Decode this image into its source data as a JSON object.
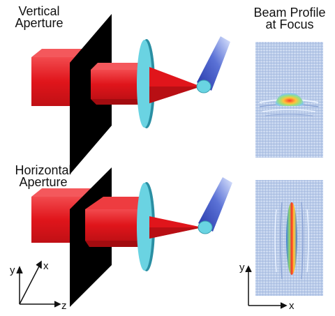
{
  "labels": {
    "top_aperture": [
      "Vertical",
      "Aperture"
    ],
    "bottom_aperture": [
      "Horizontal",
      "Aperture"
    ],
    "profile_title": [
      "Beam Profile",
      "at Focus"
    ]
  },
  "axes_3d": {
    "x": "x",
    "y": "y",
    "z": "z"
  },
  "axes_profile": {
    "x": "x",
    "y": "y"
  },
  "colors": {
    "beam": "#e0151b",
    "beam_dark": "#a30c10",
    "aperture": "#000000",
    "lens": "#6ad3e2",
    "lens_edge": "#2a8fa3",
    "fiber_light": "#dfe8ff",
    "fiber_dark": "#2537a8",
    "fiber_tip": "#69d4e2",
    "profile_bg": "#b7c8e6"
  }
}
